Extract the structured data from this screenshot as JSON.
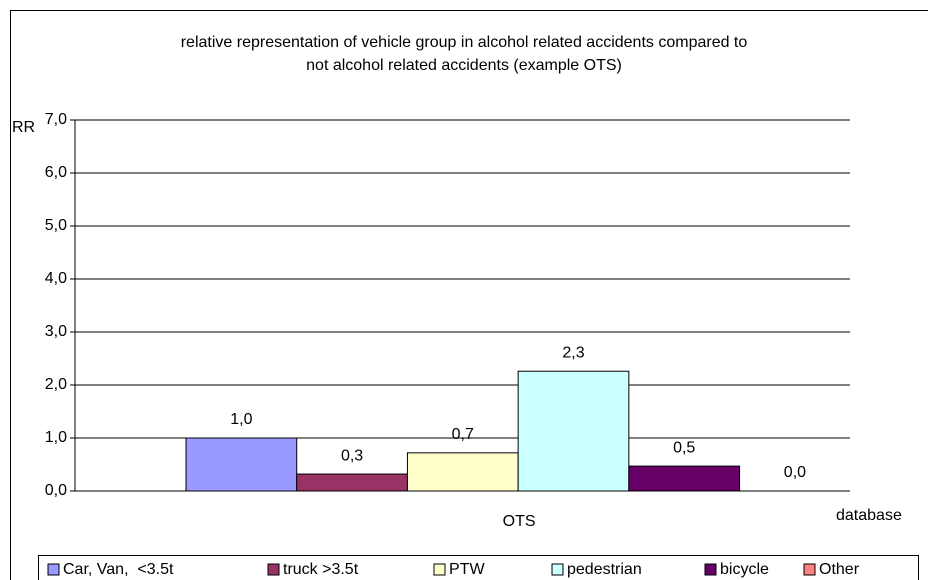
{
  "chart_data": {
    "type": "bar",
    "title": [
      "relative representation of vehicle group in alcohol related accidents compared to",
      "not alcohol related accidents (example OTS)"
    ],
    "y_label": "RR",
    "x_label": "database",
    "categories": [
      "OTS"
    ],
    "series": [
      {
        "name": "Car, Van,  <3.5t",
        "color": "#9999ff",
        "values": [
          1.0
        ],
        "value_labels": [
          "1,0"
        ]
      },
      {
        "name": "truck >3.5t",
        "color": "#993366",
        "values": [
          0.32
        ],
        "value_labels": [
          "0,3"
        ]
      },
      {
        "name": "PTW",
        "color": "#ffffcc",
        "values": [
          0.72
        ],
        "value_labels": [
          "0,7"
        ]
      },
      {
        "name": "pedestrian",
        "color": "#ccffff",
        "values": [
          2.26
        ],
        "value_labels": [
          "2,3"
        ]
      },
      {
        "name": "bicycle",
        "color": "#660066",
        "values": [
          0.47
        ],
        "value_labels": [
          "0,5"
        ]
      },
      {
        "name": "Other",
        "color": "#ff8080",
        "values": [
          0
        ],
        "value_labels": [
          "0,0"
        ]
      }
    ],
    "ylim": [
      0,
      7
    ],
    "yticks": [
      {
        "value": 0,
        "label": "0,0"
      },
      {
        "value": 1,
        "label": "1,0"
      },
      {
        "value": 2,
        "label": "2,0"
      },
      {
        "value": 3,
        "label": "3,0"
      },
      {
        "value": 4,
        "label": "4,0"
      },
      {
        "value": 5,
        "label": "5,0"
      },
      {
        "value": 6,
        "label": "6,0"
      },
      {
        "value": 7,
        "label": "7,0"
      }
    ],
    "grid": true,
    "legend": "bottom"
  }
}
